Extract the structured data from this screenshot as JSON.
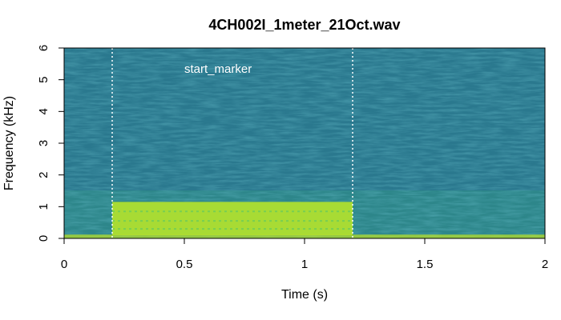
{
  "chart_data": {
    "type": "heatmap",
    "title": "4CH002I_1meter_21Oct.wav",
    "xlabel": "Time (s)",
    "ylabel": "Frequency (kHz)",
    "xlim": [
      0,
      2
    ],
    "ylim": [
      0,
      6
    ],
    "x_ticks": [
      {
        "value": 0,
        "label": "0"
      },
      {
        "value": 0.5,
        "label": "0.5"
      },
      {
        "value": 1,
        "label": "1"
      },
      {
        "value": 1.5,
        "label": "1.5"
      },
      {
        "value": 2,
        "label": "2"
      }
    ],
    "y_ticks": [
      {
        "value": 0,
        "label": "0"
      },
      {
        "value": 1,
        "label": "1"
      },
      {
        "value": 2,
        "label": "2"
      },
      {
        "value": 3,
        "label": "3"
      },
      {
        "value": 4,
        "label": "4"
      },
      {
        "value": 5,
        "label": "5"
      },
      {
        "value": 6,
        "label": "6"
      }
    ],
    "markers": [
      {
        "time": 0.2
      },
      {
        "time": 1.2
      }
    ],
    "annotation": {
      "text": "start_marker",
      "time": 0.54,
      "freq": 5.35
    },
    "band": {
      "t_start": 0.2,
      "t_end": 1.2,
      "f_low": 0.1,
      "f_high": 1.15
    },
    "colors": {
      "background": "#2a788e",
      "band": "#a8db34",
      "marker": "#ffffff"
    }
  }
}
